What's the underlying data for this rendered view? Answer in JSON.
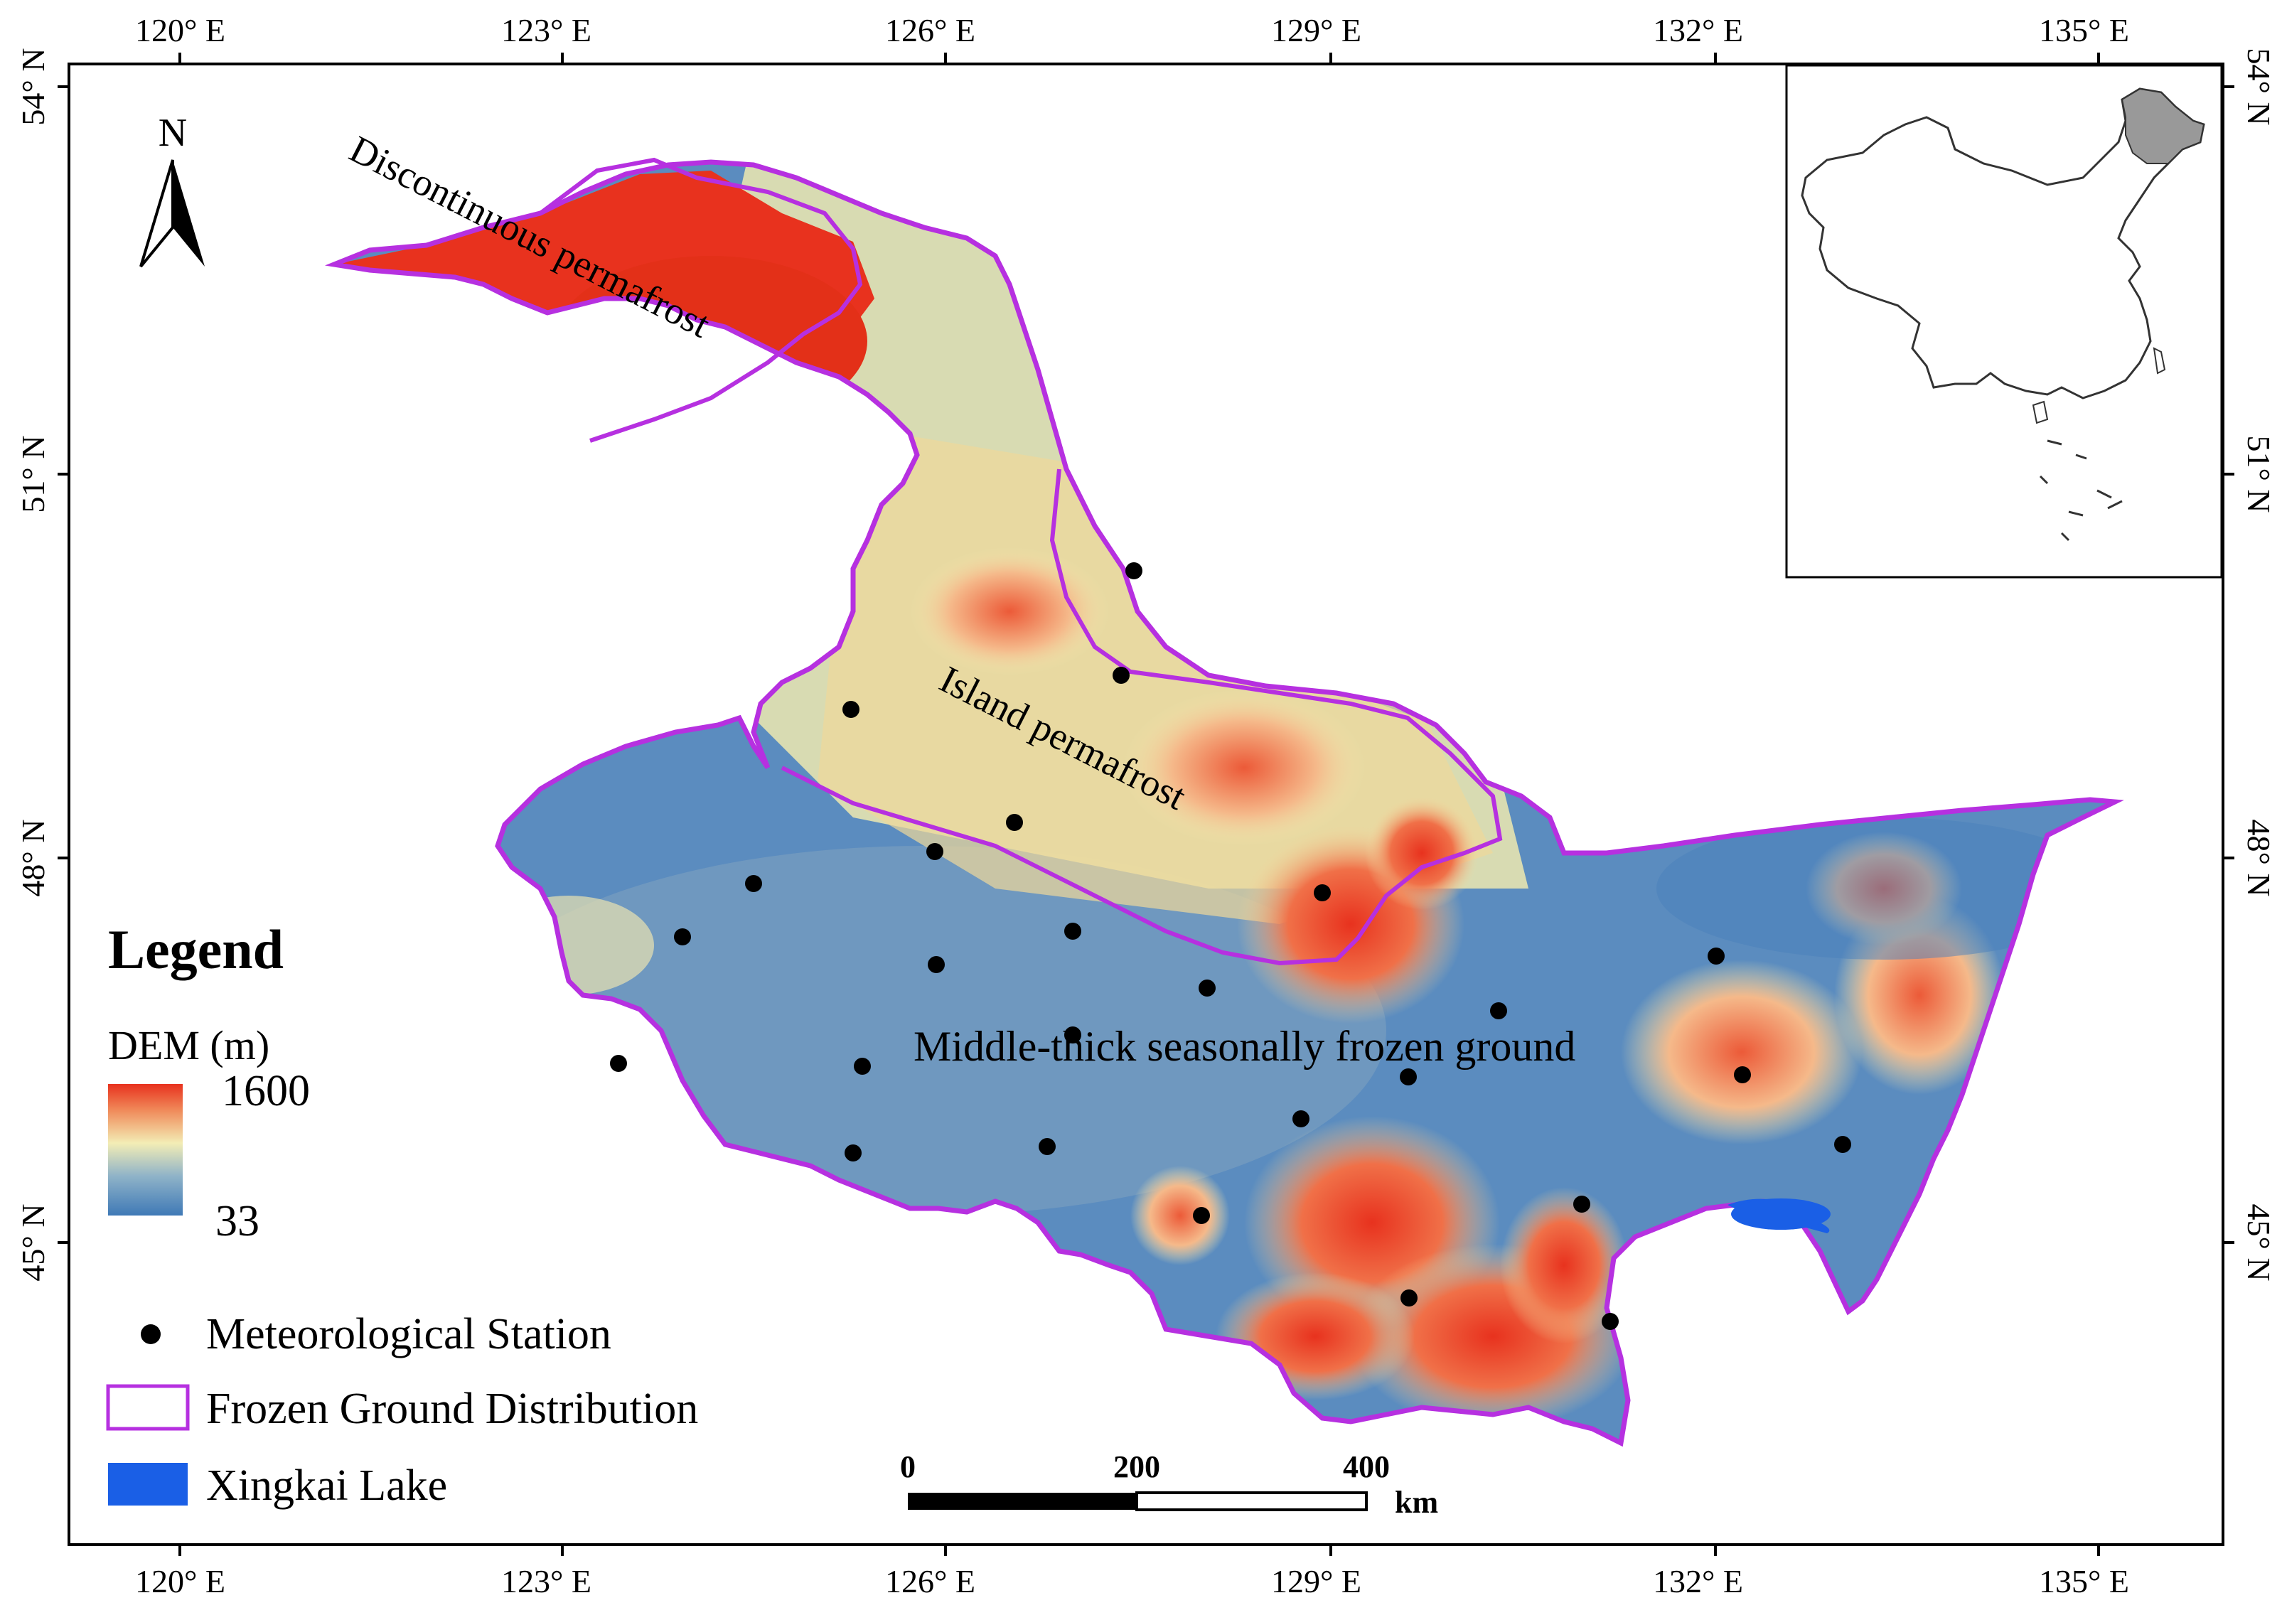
{
  "axes": {
    "lon_labels": [
      "120° E",
      "123° E",
      "126° E",
      "129° E",
      "132° E",
      "135° E"
    ],
    "lat_labels": [
      "54° N",
      "51° N",
      "48° N",
      "45° N"
    ]
  },
  "regions": {
    "discontinuous": "Discontinuous permafrost",
    "island": "Island permafrost",
    "seasonal": "Middle-thick seasonally frozen ground"
  },
  "north_arrow": {
    "label": "N"
  },
  "legend": {
    "title": "Legend",
    "dem_title": "DEM (m)",
    "dem_max": "1600",
    "dem_min": "33",
    "items": {
      "station": "Meteorological Station",
      "frozen": "Frozen Ground Distribution",
      "lake": "Xingkai Lake"
    }
  },
  "scale_bar": {
    "ticks": [
      "0",
      "200",
      "400"
    ],
    "unit": "km"
  },
  "colors": {
    "boundary": "#b630e0",
    "lake": "#1a5fe6",
    "dem_high": "#e8321e",
    "dem_mid": "#f3edb5",
    "dem_low": "#4f82b8",
    "inset_highlight": "#999999"
  },
  "stations_count_note": null
}
